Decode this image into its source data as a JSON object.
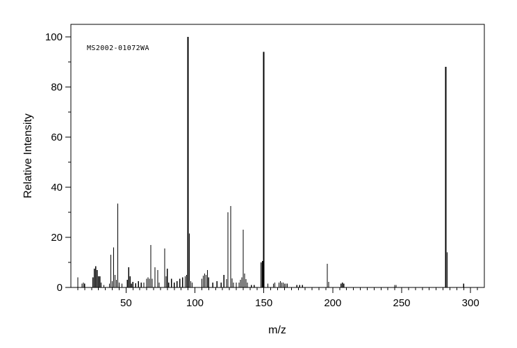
{
  "figure": {
    "background_color": "#ffffff",
    "line_color": "#000000"
  },
  "annotation": {
    "label": "MS2002-01072WA"
  },
  "chart_data": {
    "type": "bar",
    "subtype": "mass-spectrum",
    "title": "MS2002-01072WA",
    "xlabel": "m/z",
    "ylabel": "Relative Intensity",
    "xlim": [
      10,
      310
    ],
    "ylim": [
      0,
      105
    ],
    "x_major_ticks": [
      50,
      100,
      150,
      200,
      250,
      300
    ],
    "x_minor_step": 5,
    "y_major_ticks": [
      0,
      20,
      40,
      60,
      80,
      100
    ],
    "y_minor_step": 10,
    "grid": false,
    "legend": null,
    "peaks_format": [
      "mz",
      "relative_intensity_percent"
    ],
    "peaks": [
      [
        15,
        4
      ],
      [
        18,
        1.5
      ],
      [
        19,
        2
      ],
      [
        20,
        1.5
      ],
      [
        26,
        4
      ],
      [
        27,
        7.5
      ],
      [
        28,
        8.5
      ],
      [
        29,
        7
      ],
      [
        30,
        4.5
      ],
      [
        31,
        4.5
      ],
      [
        32,
        2
      ],
      [
        34,
        1
      ],
      [
        38,
        1.5
      ],
      [
        39,
        13
      ],
      [
        40,
        2.5
      ],
      [
        41,
        16
      ],
      [
        42,
        5
      ],
      [
        43,
        3
      ],
      [
        44,
        33.5
      ],
      [
        45,
        2
      ],
      [
        47,
        1.5
      ],
      [
        51,
        3
      ],
      [
        52,
        8
      ],
      [
        53,
        4.5
      ],
      [
        54,
        1.5
      ],
      [
        55,
        2.2
      ],
      [
        57,
        1.7
      ],
      [
        59,
        2.5
      ],
      [
        61,
        2
      ],
      [
        63,
        2
      ],
      [
        65,
        3.5
      ],
      [
        66,
        4
      ],
      [
        67,
        3.5
      ],
      [
        68,
        17
      ],
      [
        69,
        3.5
      ],
      [
        71,
        8
      ],
      [
        73,
        7
      ],
      [
        74,
        2
      ],
      [
        78,
        15.5
      ],
      [
        79,
        4.5
      ],
      [
        80,
        7.5
      ],
      [
        81,
        2
      ],
      [
        83,
        3.5
      ],
      [
        85,
        2
      ],
      [
        87,
        2.5
      ],
      [
        89,
        3.5
      ],
      [
        91,
        4
      ],
      [
        93,
        4.4
      ],
      [
        94,
        5
      ],
      [
        95,
        100
      ],
      [
        96,
        21.5
      ],
      [
        97,
        2.5
      ],
      [
        98,
        2
      ],
      [
        105,
        3.5
      ],
      [
        106,
        4.7
      ],
      [
        107,
        5.5
      ],
      [
        108,
        5
      ],
      [
        109,
        7
      ],
      [
        110,
        4
      ],
      [
        113,
        2
      ],
      [
        116,
        2.5
      ],
      [
        119,
        2
      ],
      [
        121,
        5
      ],
      [
        123,
        3.3
      ],
      [
        124,
        30
      ],
      [
        126,
        32.5
      ],
      [
        127,
        3.6
      ],
      [
        128,
        2
      ],
      [
        130,
        2
      ],
      [
        132,
        2
      ],
      [
        133,
        3
      ],
      [
        134,
        4
      ],
      [
        135,
        23
      ],
      [
        136,
        5.5
      ],
      [
        137,
        3.3
      ],
      [
        138,
        2
      ],
      [
        141,
        1
      ],
      [
        143,
        1
      ],
      [
        148,
        10
      ],
      [
        149,
        10.5
      ],
      [
        150,
        94
      ],
      [
        153,
        1.5
      ],
      [
        157,
        1.5
      ],
      [
        158,
        2
      ],
      [
        161,
        2
      ],
      [
        162,
        2.5
      ],
      [
        163,
        2
      ],
      [
        164,
        2
      ],
      [
        165,
        1.5
      ],
      [
        166,
        1.5
      ],
      [
        167,
        1.5
      ],
      [
        174,
        1
      ],
      [
        176,
        1
      ],
      [
        178,
        1
      ],
      [
        196,
        9.5
      ],
      [
        197,
        2.2
      ],
      [
        206,
        1.5
      ],
      [
        207,
        2
      ],
      [
        208,
        1.5
      ],
      [
        245,
        1
      ],
      [
        246,
        1
      ],
      [
        282,
        88
      ],
      [
        283,
        14
      ],
      [
        295,
        1.5
      ]
    ]
  }
}
